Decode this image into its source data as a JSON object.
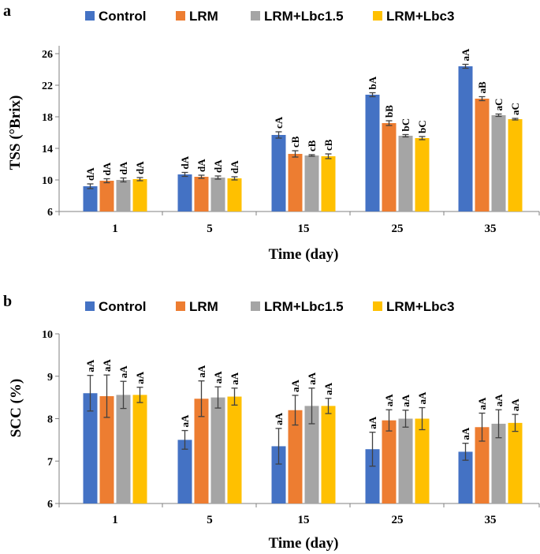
{
  "colors": {
    "Control": "#4472C4",
    "LRM": "#ED7D31",
    "LRM+Lbc1.5": "#A5A5A5",
    "LRM+Lbc3": "#FFC000"
  },
  "chart_data": [
    {
      "panel_label": "a",
      "type": "bar",
      "categories": [
        "1",
        "5",
        "15",
        "25",
        "35"
      ],
      "xlabel": "Time (day)",
      "ylabel": "TSS (°Brix)",
      "ylim": [
        6,
        27
      ],
      "yticks": [
        6,
        10,
        14,
        18,
        22,
        26
      ],
      "legend": [
        "Control",
        "LRM",
        "LRM+Lbc1.5",
        "LRM+Lbc3"
      ],
      "series": [
        {
          "name": "Control",
          "values": [
            9.2,
            10.7,
            15.7,
            20.8,
            24.4
          ],
          "errors": [
            0.3,
            0.25,
            0.4,
            0.25,
            0.25
          ],
          "labels": [
            "dA",
            "dA",
            "cA",
            "bA",
            "aA"
          ]
        },
        {
          "name": "LRM",
          "values": [
            9.9,
            10.4,
            13.3,
            17.2,
            20.3
          ],
          "errors": [
            0.25,
            0.2,
            0.4,
            0.3,
            0.25
          ],
          "labels": [
            "dA",
            "dA",
            "cB",
            "bB",
            "aB"
          ]
        },
        {
          "name": "LRM+Lbc1.5",
          "values": [
            10.0,
            10.3,
            13.1,
            15.6,
            18.2
          ],
          "errors": [
            0.25,
            0.2,
            0.1,
            0.15,
            0.15
          ],
          "labels": [
            "dA",
            "dA",
            "cB",
            "bC",
            "aC"
          ]
        },
        {
          "name": "LRM+Lbc3",
          "values": [
            10.1,
            10.2,
            13.0,
            15.3,
            17.7
          ],
          "errors": [
            0.2,
            0.2,
            0.3,
            0.2,
            0.1
          ],
          "labels": [
            "dA",
            "dA",
            "cB",
            "bC",
            "aC"
          ]
        }
      ]
    },
    {
      "panel_label": "b",
      "type": "bar",
      "categories": [
        "1",
        "5",
        "15",
        "25",
        "35"
      ],
      "xlabel": "Time (day)",
      "ylabel": "SCC (%)",
      "ylim": [
        6,
        10
      ],
      "yticks": [
        6,
        7,
        8,
        9,
        10
      ],
      "legend": [
        "Control",
        "LRM",
        "LRM+Lbc1.5",
        "LRM+Lbc3"
      ],
      "series": [
        {
          "name": "Control",
          "values": [
            8.6,
            7.5,
            7.35,
            7.28,
            7.22
          ],
          "errors": [
            0.42,
            0.22,
            0.42,
            0.4,
            0.2
          ],
          "labels": [
            "aA",
            "aA",
            "aA",
            "aA",
            "aA"
          ]
        },
        {
          "name": "LRM",
          "values": [
            8.53,
            8.47,
            8.2,
            7.96,
            7.8
          ],
          "errors": [
            0.5,
            0.42,
            0.35,
            0.25,
            0.33
          ],
          "labels": [
            "aA",
            "aA",
            "aA",
            "aA",
            "aA"
          ]
        },
        {
          "name": "LRM+Lbc1.5",
          "values": [
            8.56,
            8.5,
            8.3,
            8.0,
            7.88
          ],
          "errors": [
            0.32,
            0.25,
            0.42,
            0.2,
            0.33
          ],
          "labels": [
            "aA",
            "aA",
            "aA",
            "aA",
            "aA"
          ]
        },
        {
          "name": "LRM+Lbc3",
          "values": [
            8.56,
            8.52,
            8.3,
            8.0,
            7.9
          ],
          "errors": [
            0.18,
            0.2,
            0.18,
            0.26,
            0.2
          ],
          "labels": [
            "aA",
            "aA",
            "aA",
            "aA",
            "aA"
          ]
        }
      ]
    }
  ]
}
